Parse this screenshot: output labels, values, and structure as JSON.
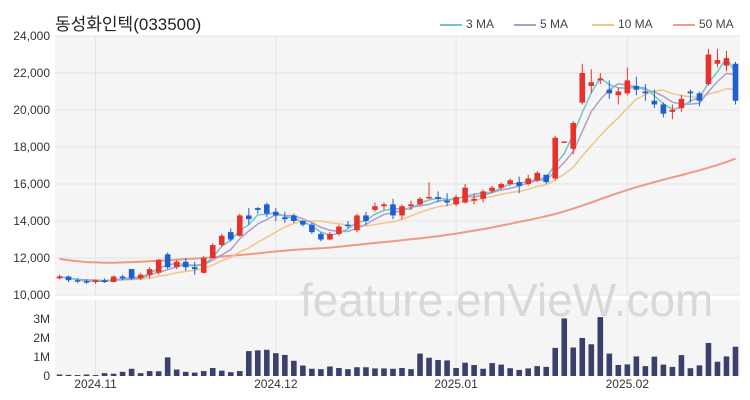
{
  "chart_data": {
    "type": "candlestick",
    "title": "동성화인텍(033500)",
    "watermark": "feature.enVieW.com",
    "legend": [
      {
        "label": "3 MA",
        "color": "#6cc7c8"
      },
      {
        "label": "5 MA",
        "color": "#b49ac9"
      },
      {
        "label": "10 MA",
        "color": "#f0c48c"
      },
      {
        "label": "50 MA",
        "color": "#ee9a84"
      }
    ],
    "colors": {
      "up": "#e8312a",
      "down": "#1f5fd1",
      "volume": "#3b3f6b",
      "plot_bg": "#f5f5f5"
    },
    "price_axis": {
      "min": 10000,
      "max": 24000,
      "ticks": [
        "10,000",
        "12,000",
        "14,000",
        "16,000",
        "18,000",
        "20,000",
        "22,000",
        "24,000"
      ]
    },
    "volume_axis": {
      "max": 4000000,
      "ticks": [
        "0",
        "1M",
        "2M",
        "3M"
      ]
    },
    "x_tick_labels": [
      {
        "label": "2024.11",
        "index": 4
      },
      {
        "label": "2024.12",
        "index": 24
      },
      {
        "label": "2025.01",
        "index": 44
      },
      {
        "label": "2025.02",
        "index": 63
      }
    ],
    "ohlc": [
      [
        10900,
        11100,
        10850,
        11000
      ],
      [
        11000,
        11050,
        10700,
        10800
      ],
      [
        10800,
        10900,
        10650,
        10750
      ],
      [
        10750,
        10850,
        10600,
        10700
      ],
      [
        10700,
        10800,
        10600,
        10800
      ],
      [
        10800,
        10900,
        10650,
        10700
      ],
      [
        10700,
        11050,
        10700,
        11000
      ],
      [
        11000,
        11100,
        10800,
        10900
      ],
      [
        11400,
        11400,
        10800,
        10900
      ],
      [
        10900,
        11200,
        10800,
        11100
      ],
      [
        11100,
        11500,
        10900,
        11400
      ],
      [
        11200,
        11950,
        11100,
        11900
      ],
      [
        12200,
        12300,
        11400,
        11500
      ],
      [
        11500,
        11900,
        11400,
        11800
      ],
      [
        11800,
        12000,
        11300,
        11500
      ],
      [
        11500,
        11800,
        11100,
        11400
      ],
      [
        11200,
        12100,
        11150,
        12000
      ],
      [
        12000,
        12800,
        11950,
        12700
      ],
      [
        12700,
        13300,
        12600,
        13200
      ],
      [
        13400,
        13600,
        12900,
        13000
      ],
      [
        13200,
        14400,
        13150,
        14300
      ],
      [
        14300,
        14700,
        13800,
        14100
      ],
      [
        14700,
        14750,
        14400,
        14600
      ],
      [
        14900,
        15000,
        14200,
        14400
      ],
      [
        14500,
        14700,
        14000,
        14300
      ],
      [
        14200,
        14500,
        13900,
        14100
      ],
      [
        14300,
        14400,
        13900,
        14000
      ],
      [
        14000,
        14050,
        13700,
        13800
      ],
      [
        13800,
        13900,
        13300,
        13400
      ],
      [
        13300,
        13400,
        12900,
        13000
      ],
      [
        13000,
        13400,
        12950,
        13300
      ],
      [
        13300,
        13800,
        13200,
        13700
      ],
      [
        13800,
        14000,
        13600,
        13750
      ],
      [
        13500,
        14400,
        13400,
        14300
      ],
      [
        14300,
        14500,
        13800,
        14000
      ],
      [
        14600,
        15000,
        14500,
        14800
      ],
      [
        14800,
        15000,
        14600,
        14900
      ],
      [
        14900,
        15200,
        14100,
        14300
      ],
      [
        14300,
        14900,
        14100,
        14800
      ],
      [
        14800,
        15100,
        14600,
        14900
      ],
      [
        14900,
        15300,
        14800,
        15200
      ],
      [
        15300,
        16100,
        15200,
        15300
      ],
      [
        15300,
        15600,
        15000,
        15200
      ],
      [
        15100,
        15500,
        14800,
        15000
      ],
      [
        14900,
        15400,
        14800,
        15300
      ],
      [
        15000,
        16000,
        14950,
        15800
      ],
      [
        15100,
        15500,
        14900,
        15200
      ],
      [
        15200,
        15700,
        15000,
        15600
      ],
      [
        15600,
        15900,
        15500,
        15800
      ],
      [
        15800,
        16100,
        15700,
        16000
      ],
      [
        16000,
        16300,
        15900,
        16200
      ],
      [
        16100,
        16400,
        15500,
        15900
      ],
      [
        16000,
        16500,
        15900,
        16300
      ],
      [
        16200,
        16700,
        16100,
        16600
      ],
      [
        16500,
        16500,
        16000,
        16100
      ],
      [
        16300,
        18600,
        16200,
        18500
      ],
      [
        18300,
        18300,
        18300,
        18300
      ],
      [
        17900,
        19400,
        17600,
        19300
      ],
      [
        20400,
        22500,
        20300,
        22000
      ],
      [
        21300,
        22200,
        20900,
        21500
      ],
      [
        21600,
        22000,
        21400,
        21700
      ],
      [
        21100,
        21600,
        20600,
        20900
      ],
      [
        20800,
        21200,
        20300,
        21000
      ],
      [
        20900,
        22300,
        20800,
        21600
      ],
      [
        21300,
        21800,
        20800,
        21100
      ],
      [
        21000,
        21400,
        20500,
        20900
      ],
      [
        20500,
        21100,
        20100,
        20300
      ],
      [
        20300,
        20400,
        19600,
        19800
      ],
      [
        19900,
        20300,
        19500,
        20000
      ],
      [
        20100,
        20800,
        19900,
        20600
      ],
      [
        21000,
        21100,
        20400,
        20900
      ],
      [
        20900,
        21000,
        20200,
        20500
      ],
      [
        21400,
        23300,
        21300,
        23000
      ],
      [
        22500,
        23300,
        22300,
        22700
      ],
      [
        22400,
        23200,
        22100,
        22800
      ],
      [
        22500,
        22600,
        20300,
        20500
      ]
    ],
    "volume": [
      80000,
      60000,
      50000,
      80000,
      50000,
      150000,
      120000,
      220000,
      380000,
      150000,
      260000,
      250000,
      980000,
      340000,
      220000,
      180000,
      260000,
      420000,
      280000,
      200000,
      260000,
      1310000,
      1350000,
      1380000,
      1200000,
      1110000,
      800000,
      550000,
      380000,
      360000,
      500000,
      420000,
      360000,
      460000,
      460000,
      400000,
      400000,
      380000,
      420000,
      360000,
      1180000,
      960000,
      840000,
      820000,
      420000,
      700000,
      580000,
      380000,
      680000,
      600000,
      410000,
      320000,
      400000,
      520000,
      480000,
      1480000,
      3030000,
      1500000,
      2000000,
      1670000,
      3100000,
      1180000,
      580000,
      610000,
      1030000,
      520000,
      1020000,
      600000,
      480000,
      1100000,
      410000,
      560000,
      1740000,
      750000,
      1030000,
      1540000
    ],
    "ma50": [
      11950,
      11880,
      11820,
      11780,
      11760,
      11740,
      11740,
      11760,
      11780,
      11800,
      11820,
      11850,
      11880,
      11910,
      11940,
      11970,
      12000,
      12040,
      12080,
      12120,
      12160,
      12200,
      12250,
      12300,
      12350,
      12400,
      12440,
      12470,
      12500,
      12530,
      12560,
      12610,
      12660,
      12710,
      12760,
      12810,
      12860,
      12910,
      12960,
      13010,
      13060,
      13120,
      13180,
      13250,
      13320,
      13400,
      13480,
      13560,
      13650,
      13750,
      13850,
      13950,
      14050,
      14150,
      14260,
      14380,
      14520,
      14670,
      14830,
      15000,
      15180,
      15350,
      15520,
      15680,
      15830,
      15970,
      16100,
      16230,
      16360,
      16480,
      16610,
      16740,
      16880,
      17030,
      17190,
      17370
    ]
  }
}
